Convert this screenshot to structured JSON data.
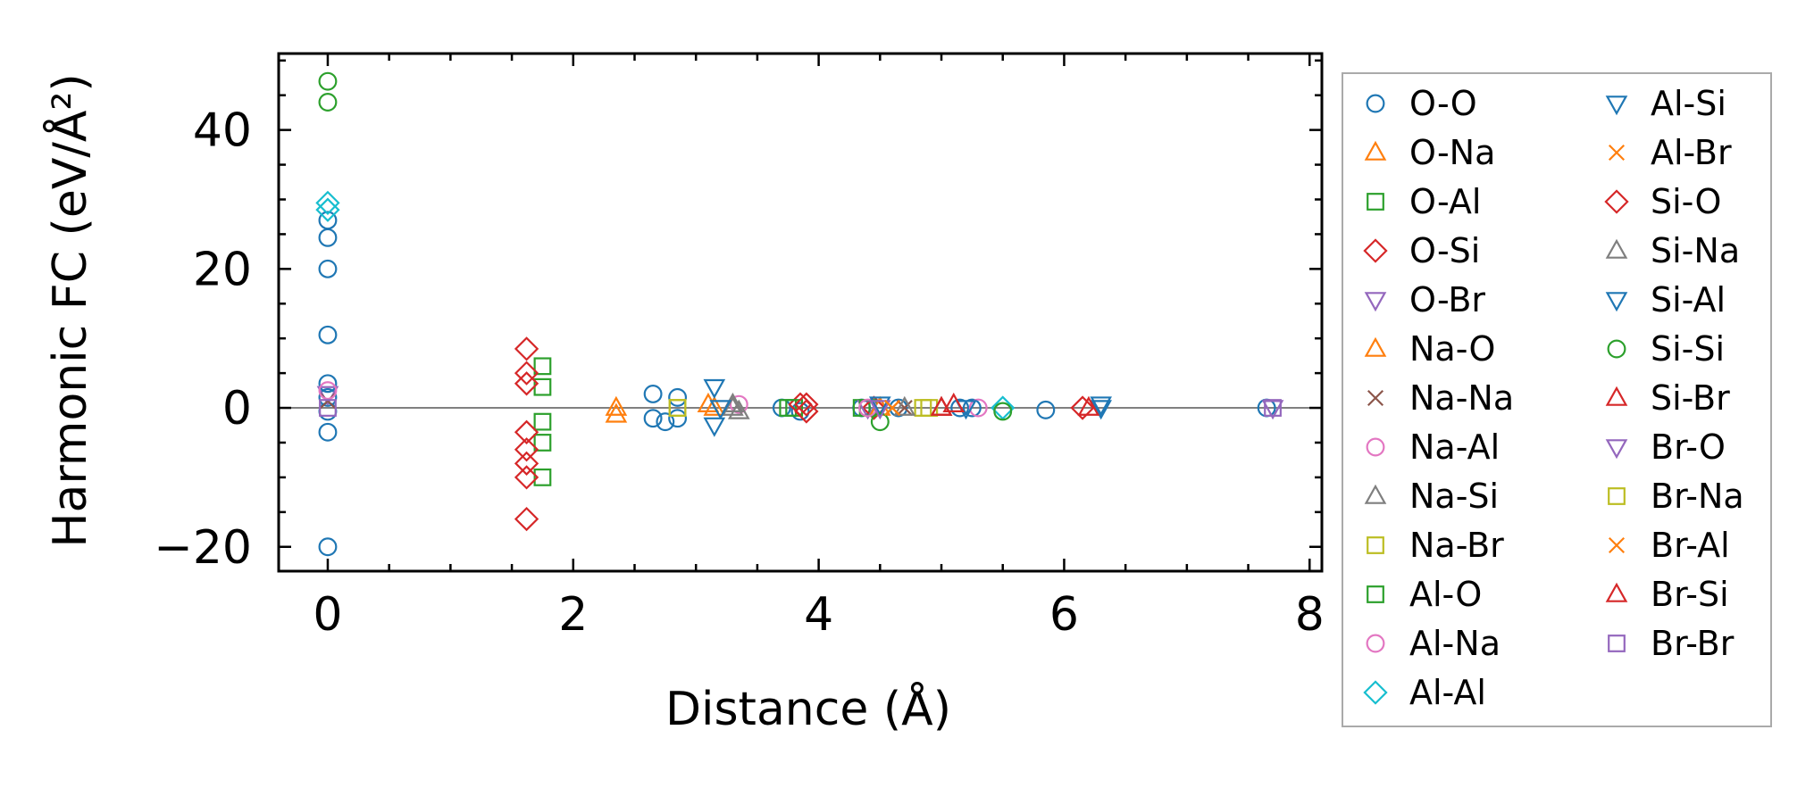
{
  "chart_data": {
    "type": "scatter",
    "title": "",
    "xlabel": "Distance (Å)",
    "ylabel": "Harmonic FC (eV/Å²)",
    "xlim": [
      -0.4,
      8.1
    ],
    "ylim": [
      -23.5,
      51
    ],
    "xticks": [
      0,
      2,
      4,
      6,
      8
    ],
    "yticks": [
      -20,
      0,
      20,
      40
    ],
    "xtick_labels": [
      "0",
      "2",
      "4",
      "6",
      "8"
    ],
    "ytick_labels": [
      "−20",
      "0",
      "20",
      "40"
    ],
    "grid": false,
    "zero_line": true,
    "legend_position": "outside-right",
    "series": [
      {
        "name": "O-O",
        "marker": "circle",
        "color": "#1f77b4",
        "points": [
          [
            0,
            27
          ],
          [
            0,
            24.5
          ],
          [
            0,
            20
          ],
          [
            0,
            10.5
          ],
          [
            0,
            3.5
          ],
          [
            0,
            1.5
          ],
          [
            0,
            -0.5
          ],
          [
            0,
            -3.5
          ],
          [
            0,
            -20
          ],
          [
            2.65,
            2
          ],
          [
            2.65,
            -1.5
          ],
          [
            2.75,
            -2
          ],
          [
            2.85,
            1.5
          ],
          [
            2.85,
            -1.5
          ],
          [
            3.7,
            0
          ],
          [
            3.85,
            -0.5
          ],
          [
            4.35,
            0
          ],
          [
            4.65,
            0
          ],
          [
            5.15,
            0
          ],
          [
            5.25,
            0
          ],
          [
            5.85,
            -0.3
          ],
          [
            7.65,
            0
          ]
        ]
      },
      {
        "name": "O-Na",
        "marker": "triangle-up",
        "color": "#ff7f0e",
        "points": [
          [
            2.35,
            -1
          ],
          [
            2.35,
            0
          ],
          [
            3.1,
            0.5
          ]
        ]
      },
      {
        "name": "O-Al",
        "marker": "square",
        "color": "#2ca02c",
        "points": [
          [
            1.75,
            6
          ],
          [
            1.75,
            3
          ],
          [
            1.75,
            -2
          ],
          [
            1.75,
            -5
          ],
          [
            1.75,
            -10
          ],
          [
            3.75,
            0
          ],
          [
            4.35,
            0
          ]
        ]
      },
      {
        "name": "O-Si",
        "marker": "diamond",
        "color": "#d62728",
        "points": [
          [
            1.62,
            8.5
          ],
          [
            1.62,
            5
          ],
          [
            1.62,
            3.5
          ],
          [
            1.62,
            -3.5
          ],
          [
            1.62,
            -6
          ],
          [
            1.62,
            -8
          ],
          [
            1.62,
            -10
          ],
          [
            1.62,
            -16
          ],
          [
            3.85,
            0.5
          ],
          [
            4.45,
            0
          ]
        ]
      },
      {
        "name": "O-Br",
        "marker": "triangle-down",
        "color": "#9467bd",
        "points": [
          [
            0,
            2
          ],
          [
            4.4,
            0
          ]
        ]
      },
      {
        "name": "Na-O",
        "marker": "triangle-up",
        "color": "#ff7f0e",
        "points": [
          [
            3.15,
            0
          ],
          [
            4.5,
            0
          ]
        ]
      },
      {
        "name": "Na-Na",
        "marker": "x",
        "color": "#8c564b",
        "points": [
          [
            0,
            1
          ],
          [
            4.7,
            0
          ]
        ]
      },
      {
        "name": "Na-Al",
        "marker": "circle",
        "color": "#e377c2",
        "points": [
          [
            3.35,
            0.5
          ],
          [
            5.3,
            0
          ]
        ]
      },
      {
        "name": "Na-Si",
        "marker": "triangle-up",
        "color": "#7f7f7f",
        "points": [
          [
            3.3,
            0
          ],
          [
            3.35,
            -0.5
          ],
          [
            5.0,
            0
          ]
        ]
      },
      {
        "name": "Na-Br",
        "marker": "square",
        "color": "#bcbd22",
        "points": [
          [
            2.85,
            0
          ],
          [
            4.85,
            0
          ]
        ]
      },
      {
        "name": "Al-O",
        "marker": "square",
        "color": "#2ca02c",
        "points": [
          [
            3.8,
            0
          ],
          [
            4.4,
            0
          ]
        ]
      },
      {
        "name": "Al-Na",
        "marker": "circle",
        "color": "#e377c2",
        "points": [
          [
            0,
            2.5
          ],
          [
            4.4,
            0
          ]
        ]
      },
      {
        "name": "Al-Al",
        "marker": "diamond",
        "color": "#17becf",
        "points": [
          [
            0,
            29.5
          ],
          [
            0,
            28.5
          ],
          [
            5.5,
            0
          ]
        ]
      },
      {
        "name": "Al-Si",
        "marker": "triangle-down",
        "color": "#1f77b4",
        "points": [
          [
            3.15,
            3
          ],
          [
            3.15,
            -2.5
          ],
          [
            4.5,
            0.5
          ],
          [
            6.3,
            0.5
          ]
        ]
      },
      {
        "name": "Al-Br",
        "marker": "x",
        "color": "#ff7f0e",
        "points": [
          [
            4.6,
            0
          ]
        ]
      },
      {
        "name": "Si-O",
        "marker": "diamond",
        "color": "#d62728",
        "points": [
          [
            3.9,
            0.5
          ],
          [
            3.9,
            -0.5
          ],
          [
            6.15,
            0
          ]
        ]
      },
      {
        "name": "Si-Na",
        "marker": "triangle-up",
        "color": "#7f7f7f",
        "points": [
          [
            3.3,
            0.5
          ],
          [
            4.7,
            0
          ]
        ]
      },
      {
        "name": "Si-Al",
        "marker": "triangle-down",
        "color": "#1f77b4",
        "points": [
          [
            3.2,
            0
          ],
          [
            5.2,
            0
          ],
          [
            6.3,
            0
          ]
        ]
      },
      {
        "name": "Si-Si",
        "marker": "circle",
        "color": "#2ca02c",
        "points": [
          [
            0,
            47
          ],
          [
            0,
            44
          ],
          [
            4.5,
            -2
          ],
          [
            5.5,
            -0.5
          ]
        ]
      },
      {
        "name": "Si-Br",
        "marker": "triangle-up",
        "color": "#d62728",
        "points": [
          [
            5.0,
            0
          ],
          [
            5.1,
            0.5
          ]
        ]
      },
      {
        "name": "Br-O",
        "marker": "triangle-down",
        "color": "#9467bd",
        "points": [
          [
            4.5,
            0
          ],
          [
            7.7,
            0
          ]
        ]
      },
      {
        "name": "Br-Na",
        "marker": "square",
        "color": "#bcbd22",
        "points": [
          [
            2.85,
            0
          ],
          [
            4.9,
            0
          ]
        ]
      },
      {
        "name": "Br-Al",
        "marker": "x",
        "color": "#ff7f0e",
        "points": [
          [
            4.6,
            0
          ]
        ]
      },
      {
        "name": "Br-Si",
        "marker": "triangle-up",
        "color": "#d62728",
        "points": [
          [
            5.0,
            0
          ],
          [
            6.2,
            0
          ]
        ]
      },
      {
        "name": "Br-Br",
        "marker": "square",
        "color": "#9467bd",
        "points": [
          [
            0,
            0
          ],
          [
            7.7,
            0
          ]
        ]
      }
    ]
  }
}
